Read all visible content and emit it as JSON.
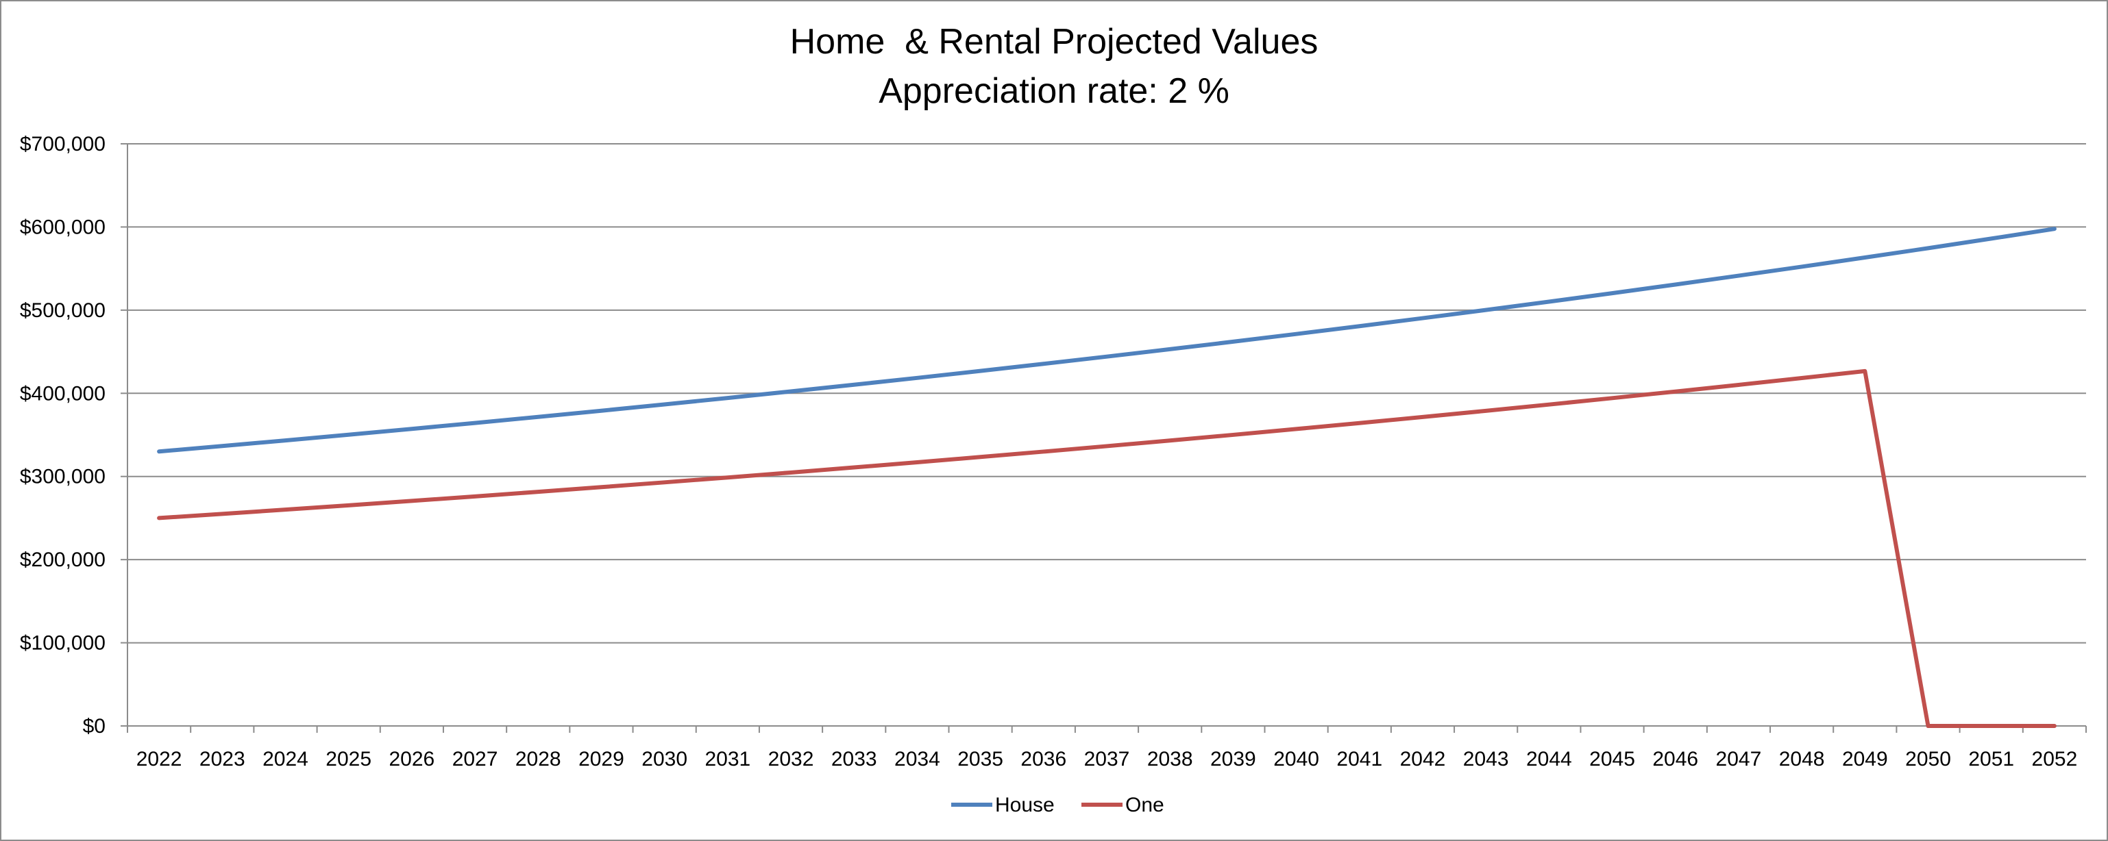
{
  "chart_data": {
    "type": "line",
    "title": "Home  & Rental Projected Values",
    "subtitle": "Appreciation rate: 2 %",
    "xlabel": "",
    "ylabel": "",
    "grid": true,
    "legend_position": "bottom",
    "ylim": [
      0,
      700000
    ],
    "yticks": [
      0,
      100000,
      200000,
      300000,
      400000,
      500000,
      600000,
      700000
    ],
    "ytick_labels": [
      "$0",
      "$100,000",
      "$200,000",
      "$300,000",
      "$400,000",
      "$500,000",
      "$600,000",
      "$700,000"
    ],
    "categories": [
      "2022",
      "2023",
      "2024",
      "2025",
      "2026",
      "2027",
      "2028",
      "2029",
      "2030",
      "2031",
      "2032",
      "2033",
      "2034",
      "2035",
      "2036",
      "2037",
      "2038",
      "2039",
      "2040",
      "2041",
      "2042",
      "2043",
      "2044",
      "2045",
      "2046",
      "2047",
      "2048",
      "2049",
      "2050",
      "2051",
      "2052"
    ],
    "series": [
      {
        "name": "House",
        "color": "#4f81bd",
        "values": [
          330000,
          336600,
          343332,
          350199,
          357203,
          364347,
          371634,
          379066,
          386648,
          394381,
          402268,
          410313,
          418520,
          426890,
          435428,
          444136,
          453019,
          462080,
          471321,
          480748,
          490363,
          500170,
          510173,
          520377,
          530784,
          541400,
          552228,
          563273,
          574538,
          586029,
          597750
        ]
      },
      {
        "name": "One",
        "color": "#c0504d",
        "values": [
          250000,
          255000,
          260100,
          265302,
          270608,
          276020,
          281541,
          287171,
          292915,
          298773,
          304749,
          310844,
          317060,
          323402,
          329870,
          336467,
          343196,
          350060,
          357062,
          364203,
          371487,
          378917,
          386495,
          394225,
          402110,
          410152,
          418355,
          426722,
          0,
          0,
          0
        ]
      }
    ]
  }
}
